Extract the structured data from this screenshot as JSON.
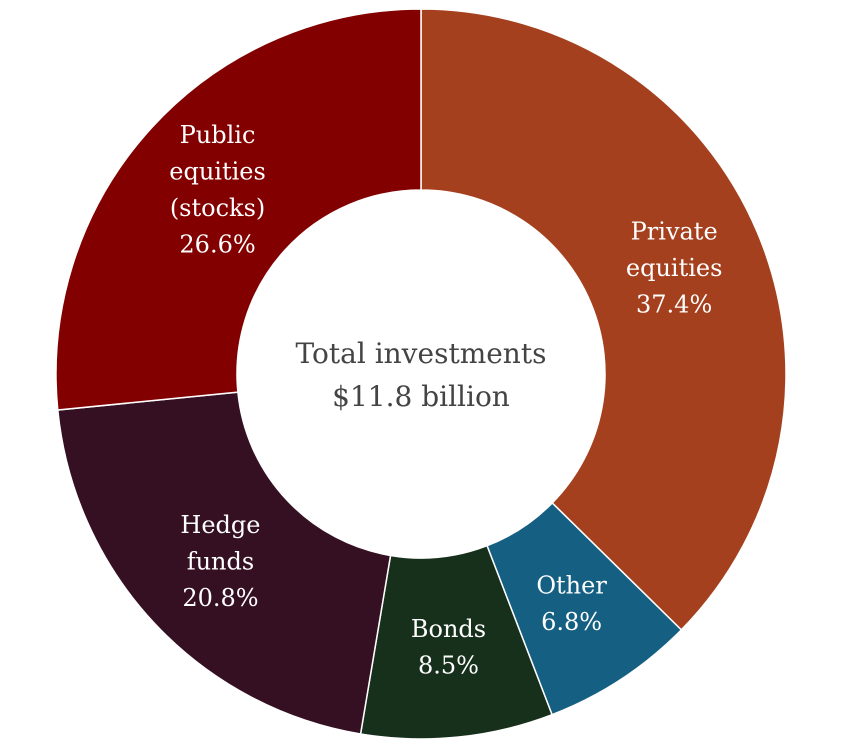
{
  "chart_data": {
    "type": "pie",
    "style": "donut",
    "center_label": {
      "line1": "Total investments",
      "line2": "$11.8 billion"
    },
    "slices": [
      {
        "name": "Private equities",
        "label_lines": [
          "Private",
          "equities"
        ],
        "value": 37.4,
        "value_label": "37.4%",
        "color": "#A5401F"
      },
      {
        "name": "Other",
        "label_lines": [
          "Other"
        ],
        "value": 6.8,
        "value_label": "6.8%",
        "color": "#155F82"
      },
      {
        "name": "Bonds",
        "label_lines": [
          "Bonds"
        ],
        "value": 8.5,
        "value_label": "8.5%",
        "color": "#17301C"
      },
      {
        "name": "Hedge funds",
        "label_lines": [
          "Hedge",
          "funds"
        ],
        "value": 20.8,
        "value_label": "20.8%",
        "color": "#351022"
      },
      {
        "name": "Public equities (stocks)",
        "label_lines": [
          "Public",
          "equities",
          "(stocks)"
        ],
        "value": 26.6,
        "value_label": "26.6%",
        "color": "#820000"
      }
    ]
  }
}
